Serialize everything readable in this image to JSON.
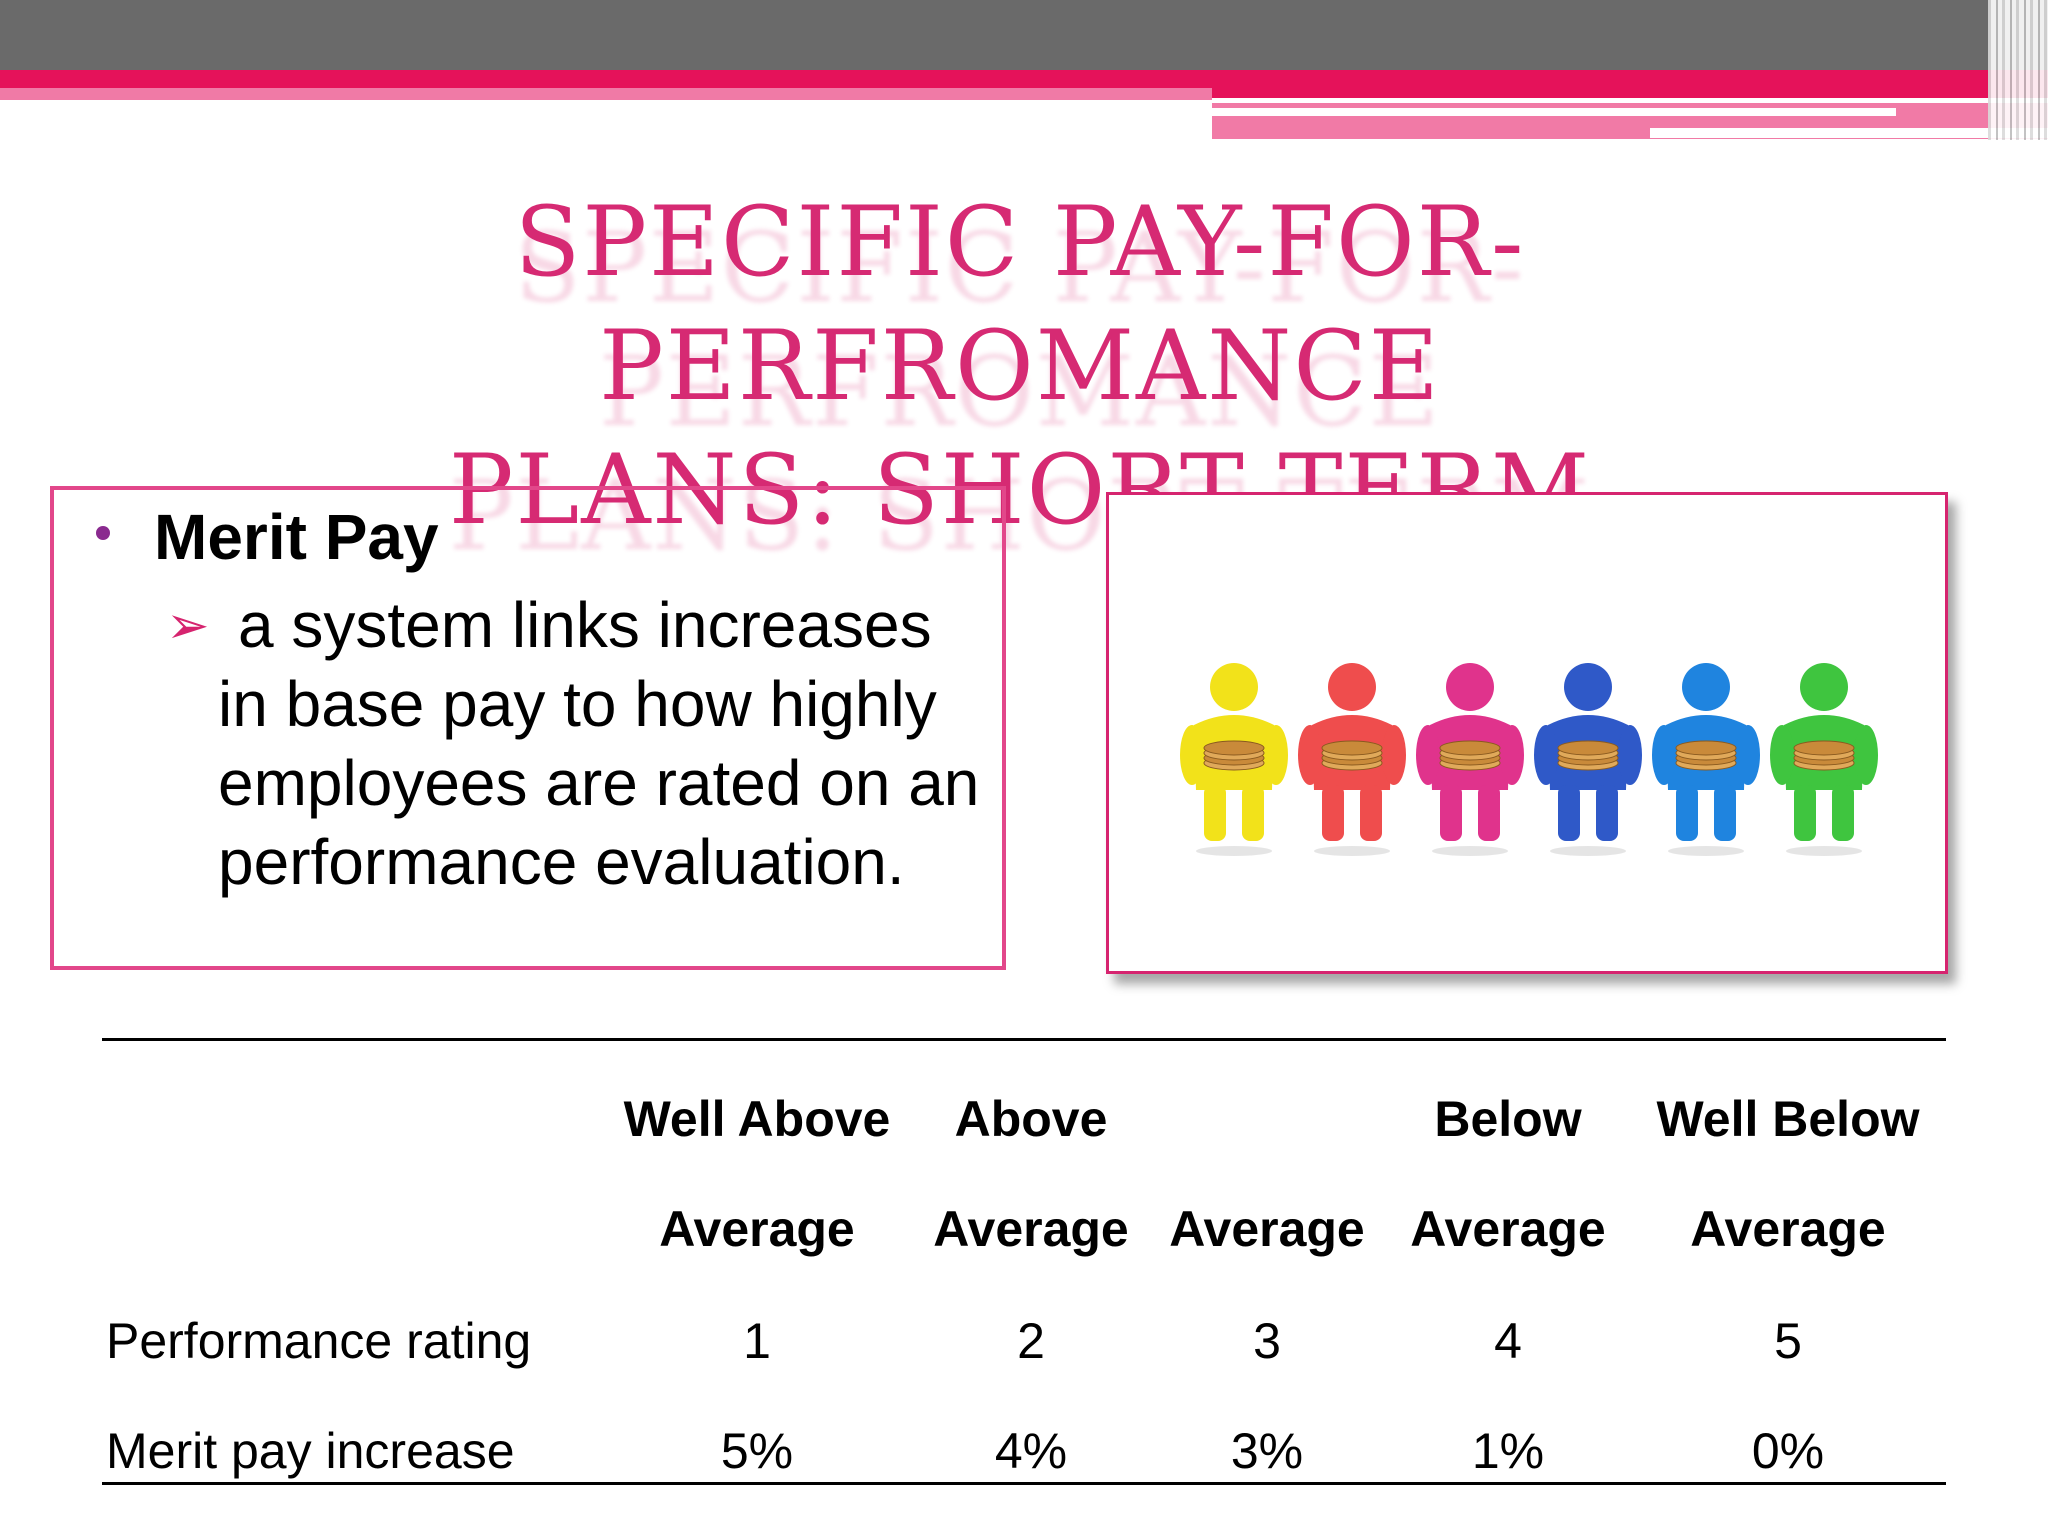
{
  "slide": {
    "title_line1": "SPECIFIC PAY-FOR-PERFROMANCE",
    "title_line2": "PLANS: SHORT TERM",
    "bullet_heading": "Merit Pay",
    "bullet_body": "a system links increases in base pay to how highly employees are rated on an performance evaluation."
  },
  "table": {
    "header_row1": [
      "Well Above",
      "Above",
      "",
      "Below",
      "Well Below"
    ],
    "header_row2": [
      "Average",
      "Average",
      "Average",
      "Average",
      "Average"
    ],
    "rows": [
      {
        "label": "Performance rating",
        "values": [
          "1",
          "2",
          "3",
          "4",
          "5"
        ]
      },
      {
        "label": "Merit pay increase",
        "values": [
          "5%",
          "4%",
          "3%",
          "1%",
          "0%"
        ]
      }
    ]
  },
  "image": {
    "figure_colors": [
      "#f2e21a",
      "#ef4d4d",
      "#e0338c",
      "#2f59c8",
      "#1f84df",
      "#3fc53f"
    ]
  },
  "colors": {
    "accent_pink": "#e5125a",
    "title_pink": "#d62a73",
    "header_gray": "#6a6a6a"
  }
}
